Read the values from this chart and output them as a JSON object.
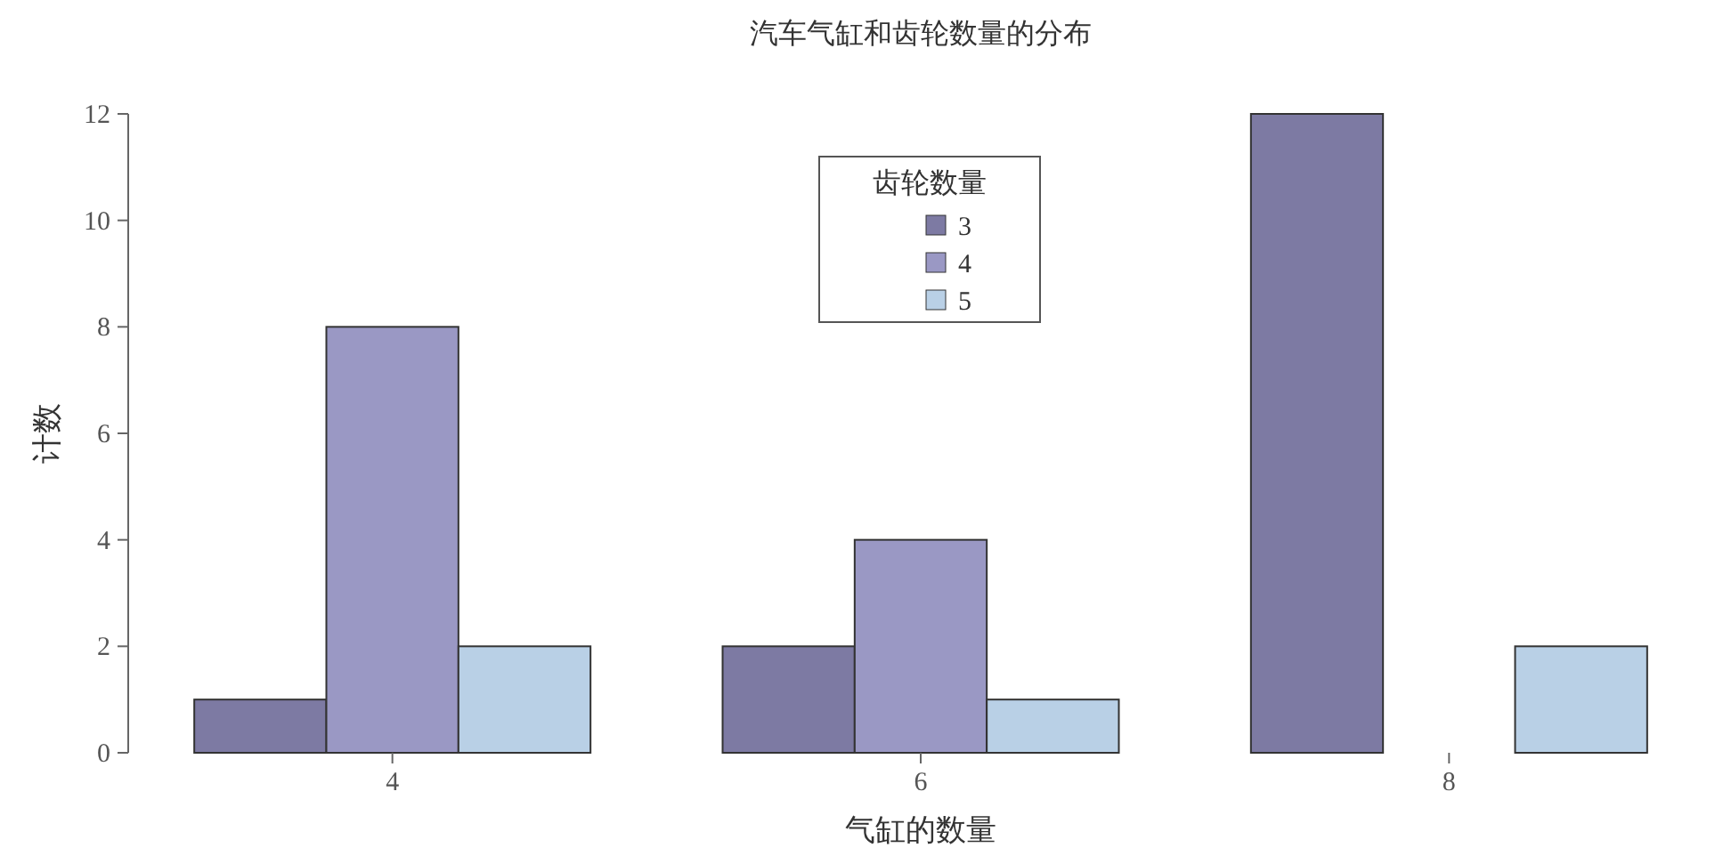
{
  "chart_data": {
    "type": "bar",
    "title": "汽车气缸和齿轮数量的分布",
    "xlabel": "气缸的数量",
    "ylabel": "计数",
    "legend_title": "齿轮数量",
    "categories": [
      "4",
      "6",
      "8"
    ],
    "series": [
      {
        "name": "3",
        "color": "#7d7aa3",
        "values": [
          1,
          2,
          12
        ]
      },
      {
        "name": "4",
        "color": "#9a98c4",
        "values": [
          8,
          4,
          0
        ]
      },
      {
        "name": "5",
        "color": "#b9d0e6",
        "values": [
          2,
          1,
          2
        ]
      }
    ],
    "ylim": [
      0,
      12
    ],
    "yticks": [
      0,
      2,
      4,
      6,
      8,
      10,
      12
    ],
    "legend": "top",
    "grid": false
  }
}
